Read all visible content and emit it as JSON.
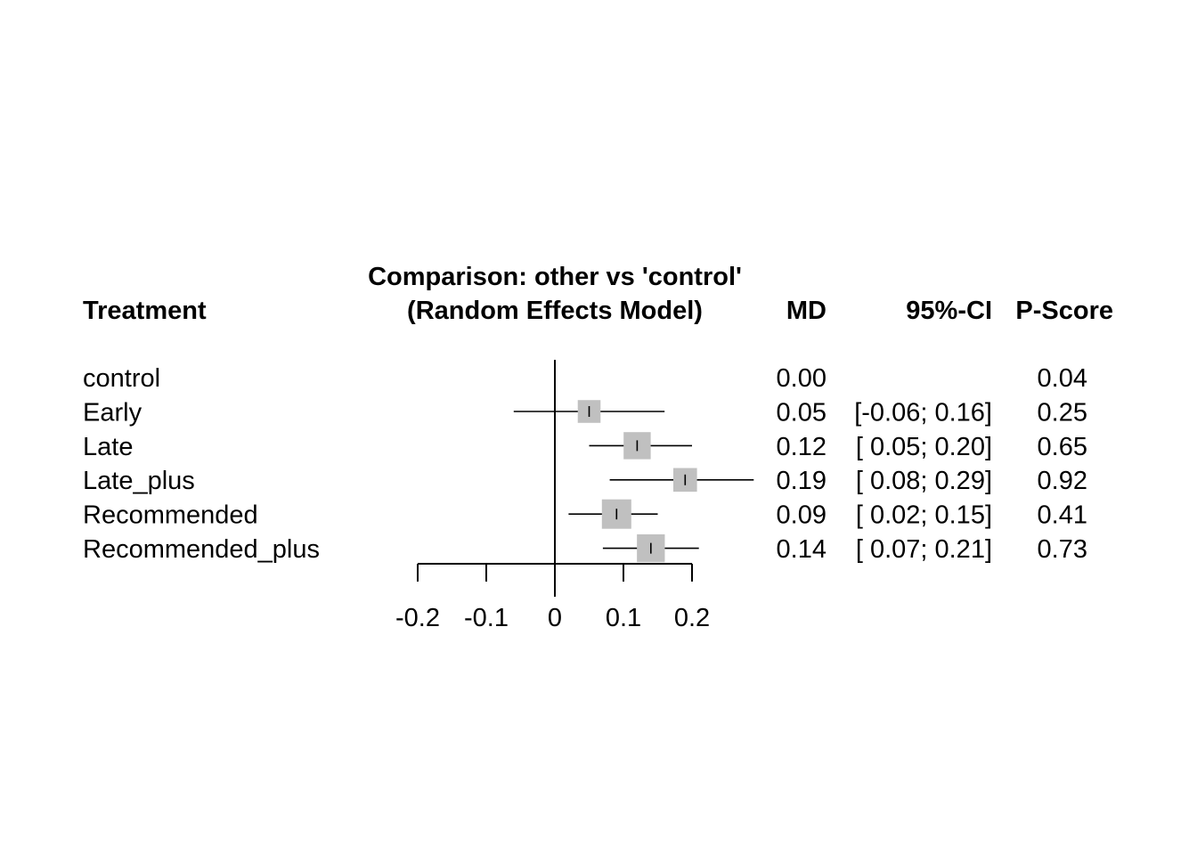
{
  "chart_data": {
    "type": "forest",
    "title_line1": "Comparison: other vs 'control'",
    "title_line2": "(Random Effects Model)",
    "headers": {
      "treatment": "Treatment",
      "md": "MD",
      "ci": "95%-CI",
      "pscore": "P-Score"
    },
    "rows": [
      {
        "label": "control",
        "md": 0.0,
        "lower": null,
        "upper": null,
        "md_text": "0.00",
        "ci_text": "",
        "pscore_text": "0.04",
        "weight": 0
      },
      {
        "label": "Early",
        "md": 0.05,
        "lower": -0.06,
        "upper": 0.16,
        "md_text": "0.05",
        "ci_text": "[-0.06; 0.16]",
        "pscore_text": "0.25",
        "weight": 0.6
      },
      {
        "label": "Late",
        "md": 0.12,
        "lower": 0.05,
        "upper": 0.2,
        "md_text": "0.12",
        "ci_text": "[ 0.05; 0.20]",
        "pscore_text": "0.65",
        "weight": 0.85
      },
      {
        "label": "Late_plus",
        "md": 0.19,
        "lower": 0.08,
        "upper": 0.29,
        "md_text": "0.19",
        "ci_text": "[ 0.08; 0.29]",
        "pscore_text": "0.92",
        "weight": 0.65
      },
      {
        "label": "Recommended",
        "md": 0.09,
        "lower": 0.02,
        "upper": 0.15,
        "md_text": "0.09",
        "ci_text": "[ 0.02; 0.15]",
        "pscore_text": "0.41",
        "weight": 1.0
      },
      {
        "label": "Recommended_plus",
        "md": 0.14,
        "lower": 0.07,
        "upper": 0.21,
        "md_text": "0.14",
        "ci_text": "[ 0.07; 0.21]",
        "pscore_text": "0.73",
        "weight": 0.9
      }
    ],
    "xlim": [
      -0.2,
      0.2
    ],
    "xticks": [
      -0.2,
      -0.1,
      0,
      0.1,
      0.2
    ],
    "xtick_labels": [
      "-0.2",
      "-0.1",
      "0",
      "0.1",
      "0.2"
    ],
    "reference_line": 0,
    "clip_upper": 0.29,
    "box_color": "#c0c0c0",
    "line_color": "#000000"
  }
}
